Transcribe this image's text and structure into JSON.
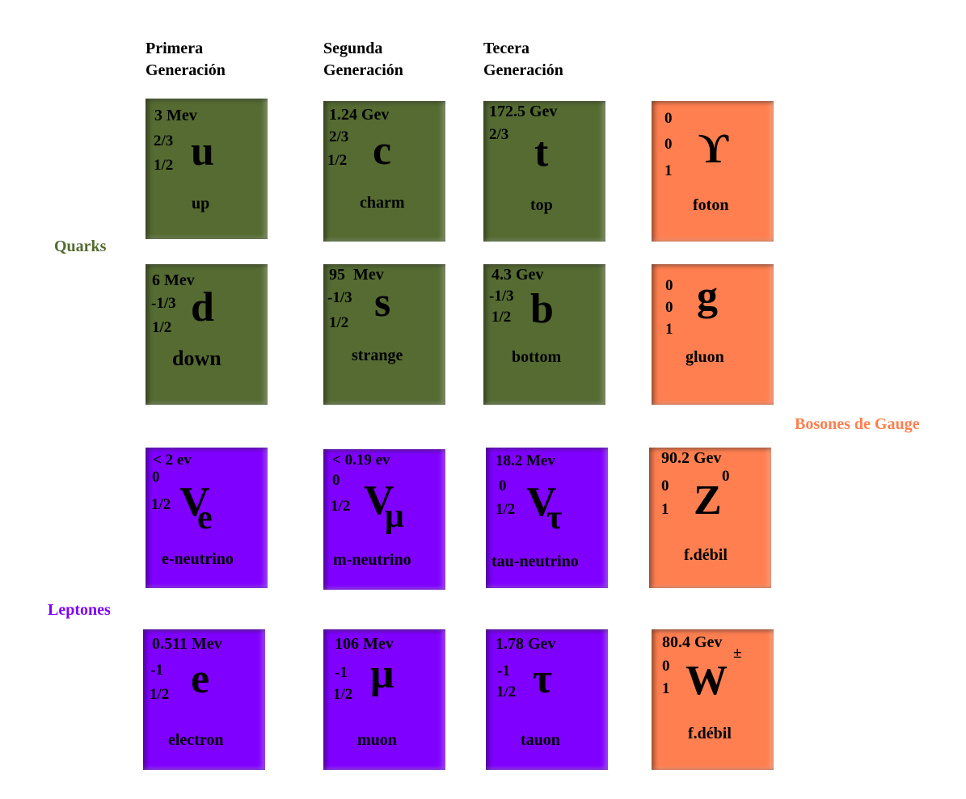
{
  "generations": [
    "Primera Generación",
    "Segunda Generación",
    "Tecera Generación"
  ],
  "labels": {
    "quarks": "Quarks",
    "leptones": "Leptones",
    "bosones": "Bosones de Gauge"
  },
  "colors": {
    "quark": "#556b32",
    "lepton": "#7f00ff",
    "boson": "#ff7f50"
  },
  "particles": {
    "up": {
      "mass": "3 Mev",
      "charge": "2/3",
      "spin": "1/2",
      "symbol": "u",
      "name": "up"
    },
    "charm": {
      "mass": "1.24 Gev",
      "charge": "2/3",
      "spin": "1/2",
      "symbol": "c",
      "name": "charm"
    },
    "top": {
      "mass": "172.5 Gev",
      "charge": "2/3",
      "symbol": "t",
      "name": "top"
    },
    "foton": {
      "mass": "0",
      "charge": "0",
      "spin": "1",
      "symbol": "ϒ",
      "name": "foton"
    },
    "down": {
      "mass": "6 Mev",
      "charge": "-1/3",
      "spin": "1/2",
      "symbol": "d",
      "name": "down"
    },
    "strange": {
      "mass": "95  Mev",
      "charge": "-1/3",
      "spin": "1/2",
      "symbol": "s",
      "name": "strange"
    },
    "bottom": {
      "mass": "4.3 Gev",
      "charge": "-1/3",
      "spin": "1/2",
      "symbol": "b",
      "name": "bottom"
    },
    "gluon": {
      "mass": "0",
      "charge": "0",
      "spin": "1",
      "symbol": "g",
      "name": "gluon"
    },
    "e_neutrino": {
      "mass": "< 2 ev",
      "charge": "0",
      "spin": "1/2",
      "symbol": "V",
      "sub": "e",
      "name": "e-neutrino"
    },
    "m_neutrino": {
      "mass": "< 0.19 ev",
      "charge": "0",
      "spin": "1/2",
      "symbol": "V",
      "sub": "μ",
      "name": "m-neutrino"
    },
    "tau_neutrino": {
      "mass": "18.2 Mev",
      "charge": "0",
      "spin": "1/2",
      "symbol": "V",
      "sub": "τ",
      "name": "tau-neutrino"
    },
    "z": {
      "mass": "90.2 Gev",
      "charge": "0",
      "spin": "1",
      "symbol": "Z",
      "sup": "0",
      "name": "f.débil"
    },
    "electron": {
      "mass": "0.511 Mev",
      "charge": "-1",
      "spin": "1/2",
      "symbol": "e",
      "name": "electron"
    },
    "muon": {
      "mass": "106 Mev",
      "charge": "-1",
      "spin": "1/2",
      "symbol": "μ",
      "name": "muon"
    },
    "tauon": {
      "mass": "1.78 Gev",
      "charge": "-1",
      "spin": "1/2",
      "symbol": "τ",
      "name": "tauon"
    },
    "w": {
      "mass": "80.4 Gev",
      "charge": "0",
      "spin": "1",
      "symbol": "W",
      "sup": "±",
      "name": "f.débil"
    }
  }
}
